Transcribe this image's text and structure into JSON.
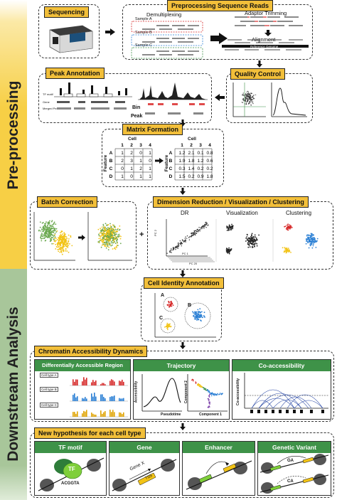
{
  "sections": {
    "preprocessing": "Pre-processing",
    "downstream": "Downstream Analysis"
  },
  "colors": {
    "preprocessing_band": "#f7cf45",
    "downstream_band": "#a8c69a",
    "header": "#f2bf3a",
    "green": "#3e9248",
    "cluster_red": "#d62828",
    "cluster_blue": "#2a7fd4",
    "cluster_yellow": "#f2c316"
  },
  "steps": {
    "sequencing": "Sequencing",
    "preprocessing_reads": "Preprocessing Sequence Reads",
    "demultiplexing": "Demultiplexing",
    "adaptor_trimming": "Adaptor Trimming",
    "alignment": "Alignment",
    "reference_genome": "Reference Genome",
    "samples": [
      "Sample A",
      "Sample B",
      "Sample C"
    ],
    "quality_control": "Quality Control",
    "peak_annotation": "Peak Annotation",
    "bin": "Bin",
    "peak": "Peak",
    "track_labels": [
      "TF motif",
      "Gene",
      "Merged Peaks"
    ],
    "matrix_formation": "Matrix Formation",
    "cell": "Cell",
    "feature": "Feature",
    "col_ids": [
      "1",
      "2",
      "3",
      "4"
    ],
    "row_ids": [
      "A",
      "B",
      "C",
      "D"
    ],
    "matrix_binary": [
      [
        "1",
        "2",
        "0",
        "1"
      ],
      [
        "2",
        "3",
        "1",
        "0"
      ],
      [
        "0",
        "1",
        "2",
        "1"
      ],
      [
        "1",
        "0",
        "1",
        "1"
      ]
    ],
    "matrix_norm": [
      [
        "1.2",
        "2.1",
        "0.1",
        "0.8"
      ],
      [
        "1.9",
        "1.8",
        "1.2",
        "0.6"
      ],
      [
        "0.3",
        "1.4",
        "0.2",
        "0.2"
      ],
      [
        "1.5",
        "0.2",
        "0.9",
        "1.8"
      ]
    ],
    "batch_correction": "Batch Correction",
    "dim_reduction": "Dimension Reduction / Visualization / Clustering",
    "dr": "DR",
    "visualization": "Visualization",
    "clustering": "Clustering",
    "pc_labels": [
      "PC 2",
      "PC 1",
      "PC 20"
    ],
    "cell_identity": "Cell Identity Annotation",
    "cluster_labels": [
      "A",
      "B",
      "C"
    ],
    "chromatin_dynamics": "Chromatin Accessibility Dynamics",
    "dar": "Differentially Accessible Region",
    "cell_types": [
      "Cell type A",
      "Cell type B",
      "Cell type C"
    ],
    "trajectory": "Trajectory",
    "accessibility": "Accessibility",
    "pseudotime": "Pseudotime",
    "component1": "Component 1",
    "component2": "Component 2",
    "coaccessibility": "Co-accessibility",
    "co_axis": "Co-accessibility",
    "hypothesis": "New hypothesis for each cell type",
    "tf_motif": "TF motif",
    "tf": "TF",
    "motif_seq": "ACGGTA",
    "gene": "Gene",
    "gene_x": "Gene X",
    "tss": "TSS",
    "enhancer": "Enhancer",
    "genetic_variant": "Genetic Variant",
    "variant_a": "A",
    "variant_ga": "GA",
    "variant_ca": "CA"
  }
}
